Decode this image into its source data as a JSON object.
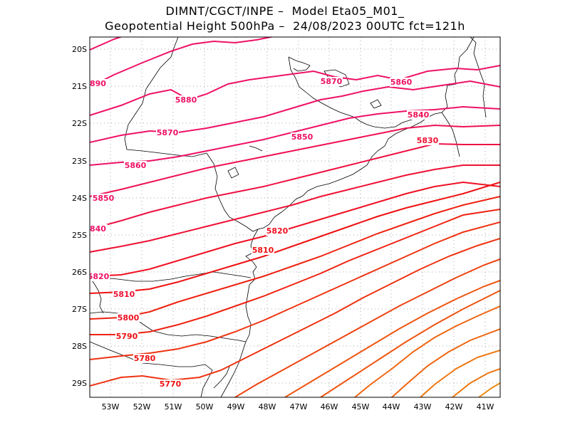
{
  "title_line_1": "DIMNT/CGCT/INPE –  Model Eta05_M01_",
  "title_line_2": "Geopotential Height 500hPa –  24/08/2023 00UTC fct=121h",
  "lat_labels": [
    "20S",
    "21S",
    "22S",
    "23S",
    "24S",
    "25S",
    "26S",
    "27S",
    "28S",
    "29S"
  ],
  "lon_labels": [
    "53W",
    "52W",
    "51W",
    "50W",
    "49W",
    "48W",
    "47W",
    "46W",
    "45W",
    "44W",
    "43W",
    "42W",
    "41W"
  ],
  "colors": {
    "contour_high": "#ee1166",
    "contour_mid": "#ee2222",
    "contour_low": "#ee7711",
    "coast": "#000000",
    "grid": "#aaaaaa"
  },
  "contour_labels": [
    {
      "text": "890",
      "color": "#ee1166"
    },
    {
      "text": "5880",
      "color": "#ee1166"
    },
    {
      "text": "5870",
      "color": "#ee1166"
    },
    {
      "text": "5860",
      "color": "#ee1166"
    },
    {
      "text": "5850",
      "color": "#ee1166"
    },
    {
      "text": "840",
      "color": "#ee1166"
    },
    {
      "text": "5820",
      "color": "#ee1166"
    },
    {
      "text": "5810",
      "color": "#ee1133"
    },
    {
      "text": "5800",
      "color": "#ee1122"
    },
    {
      "text": "5790",
      "color": "#ee1111"
    },
    {
      "text": "5780",
      "color": "#ee1111"
    },
    {
      "text": "5770",
      "color": "#ee1111"
    },
    {
      "text": "5870",
      "color": "#ee1166"
    },
    {
      "text": "5860",
      "color": "#ee1166"
    },
    {
      "text": "5850",
      "color": "#ee1166"
    },
    {
      "text": "5840",
      "color": "#ee1155"
    },
    {
      "text": "5830",
      "color": "#ee1133"
    },
    {
      "text": "5820",
      "color": "#ee1122"
    },
    {
      "text": "5810",
      "color": "#ee1111"
    }
  ]
}
